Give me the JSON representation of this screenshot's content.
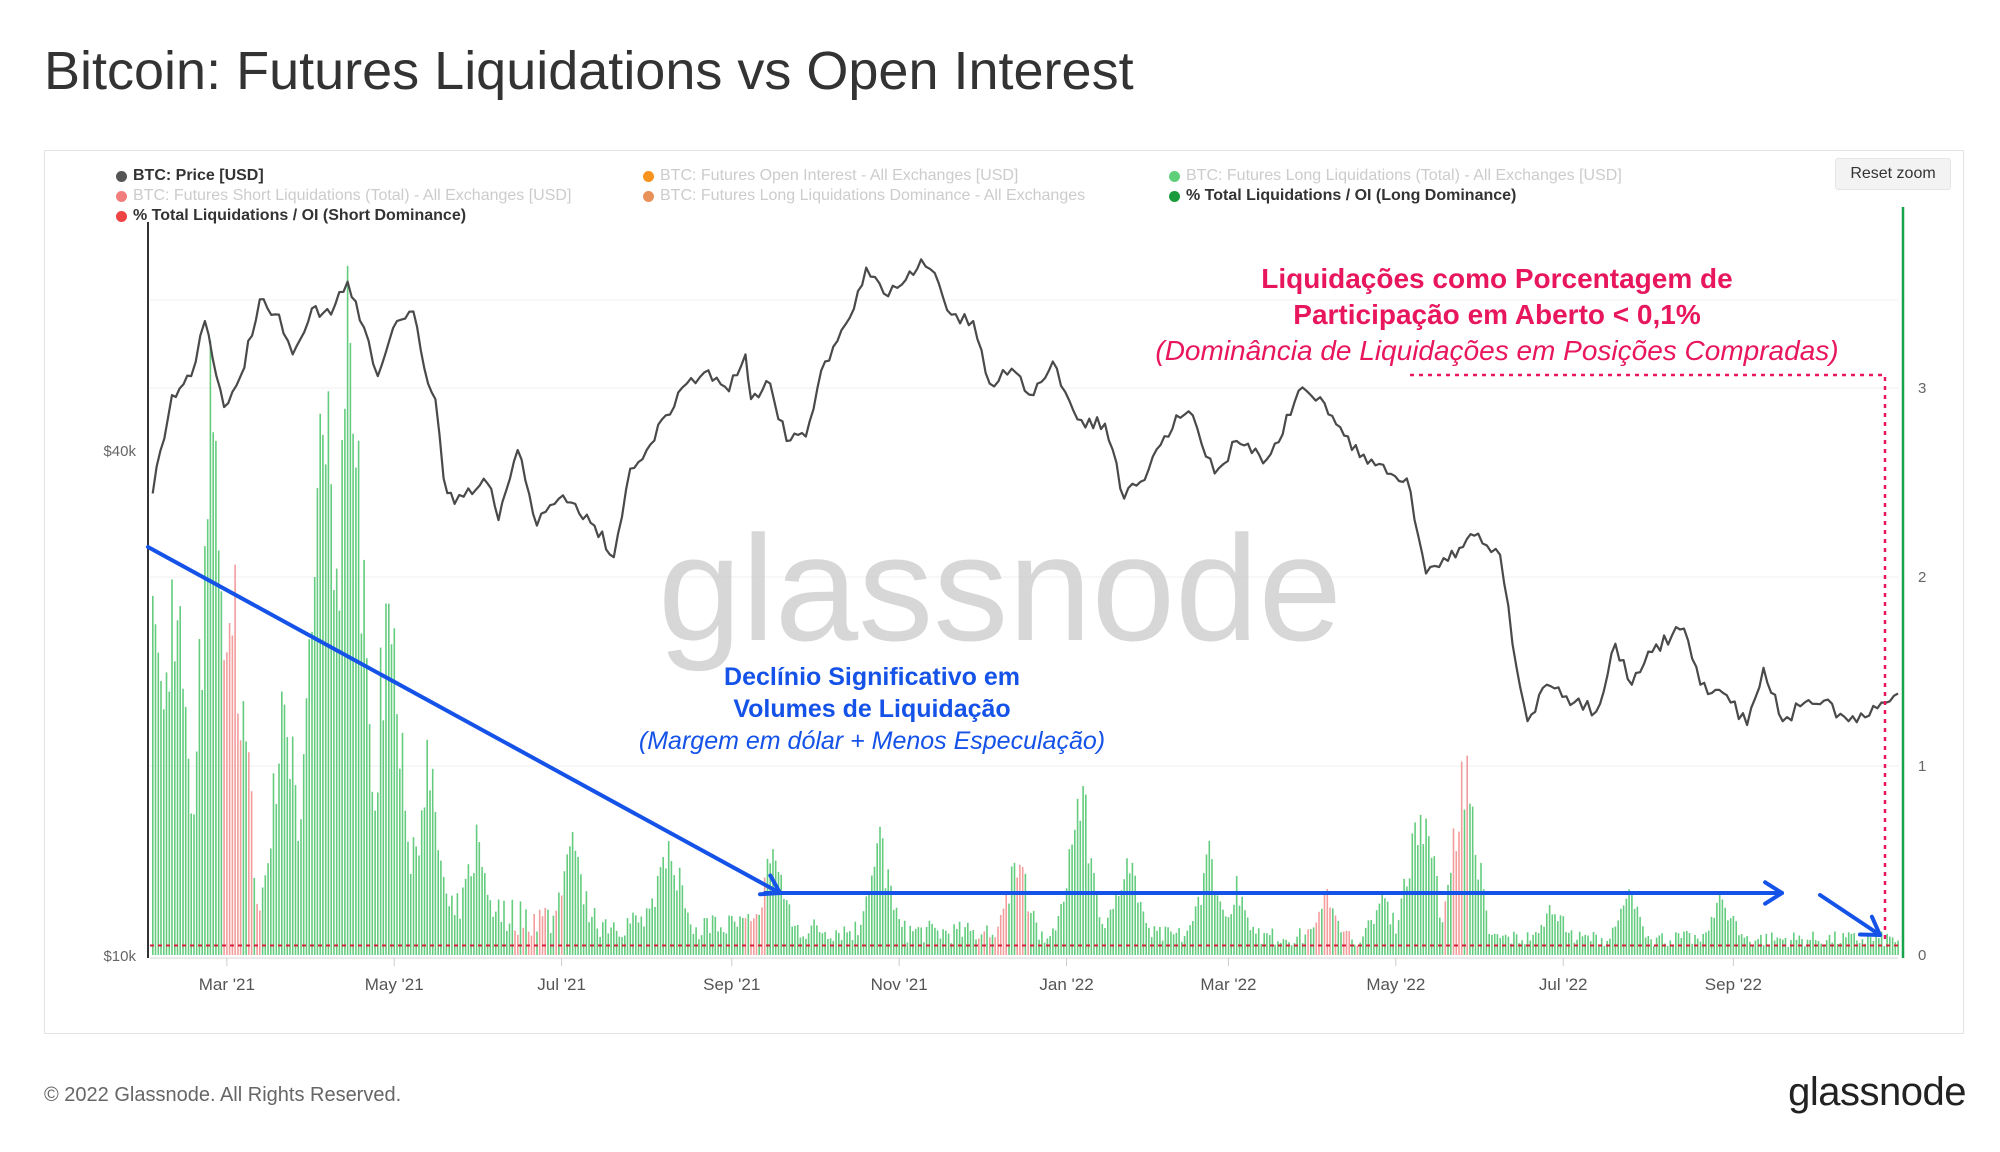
{
  "title": "Bitcoin: Futures Liquidations vs Open Interest",
  "reset_zoom_label": "Reset zoom",
  "footer": {
    "copyright": "© 2022 Glassnode. All Rights Reserved.",
    "logo": "glassnode"
  },
  "watermark": "glassnode",
  "legend": [
    {
      "label": "BTC: Price [USD]",
      "color": "#555555",
      "active": true
    },
    {
      "label": "BTC: Futures Open Interest - All Exchanges [USD]",
      "color": "#f7931a",
      "active": false
    },
    {
      "label": "BTC: Futures Long Liquidations (Total) - All Exchanges [USD]",
      "color": "#5fcf7a",
      "active": false
    },
    {
      "label": "BTC: Futures Short Liquidations (Total) - All Exchanges [USD]",
      "color": "#f27d7d",
      "active": false
    },
    {
      "label": "BTC: Futures Long Liquidations Dominance - All Exchanges",
      "color": "#e8925a",
      "active": false
    },
    {
      "label": "% Total Liquidations / OI (Long Dominance)",
      "color": "#1a9c3c",
      "active": true
    },
    {
      "label": "% Total Liquidations / OI (Short Dominance)",
      "color": "#ee4444",
      "active": true
    }
  ],
  "annotations": {
    "top_line1": "Liquidações como Porcentagem de",
    "top_line2": "Participação em Aberto < 0,1%",
    "top_line3": "(Dominância de Liquidações em Posições Compradas)",
    "mid_line1": "Declínio Significativo em",
    "mid_line2": "Volumes de Liquidação",
    "mid_line3": "(Margem em dólar + Menos Especulação)",
    "top_color": "#e8175d",
    "mid_color": "#1452e8"
  },
  "chart_data": {
    "type": "line",
    "x_range": [
      "2021-02-01",
      "2022-10-31"
    ],
    "x_ticks": [
      "Mar '21",
      "May '21",
      "Jul '21",
      "Sep '21",
      "Nov '21",
      "Jan '22",
      "Mar '22",
      "May '22",
      "Jul '22",
      "Sep '22"
    ],
    "y_left_ticks": [
      "$40k",
      "$10k"
    ],
    "y_right_ticks": [
      "3",
      "2",
      "1",
      "0"
    ],
    "y_right_range": [
      0,
      3.8
    ],
    "threshold": 0.05,
    "price": {
      "name": "BTC: Price [USD]",
      "points": [
        [
          "2021-02-02",
          35500
        ],
        [
          "2021-02-09",
          46500
        ],
        [
          "2021-02-16",
          49000
        ],
        [
          "2021-02-21",
          57000
        ],
        [
          "2021-02-28",
          45000
        ],
        [
          "2021-03-06",
          49000
        ],
        [
          "2021-03-13",
          60500
        ],
        [
          "2021-03-20",
          58000
        ],
        [
          "2021-03-25",
          52000
        ],
        [
          "2021-04-01",
          59000
        ],
        [
          "2021-04-08",
          58000
        ],
        [
          "2021-04-14",
          63500
        ],
        [
          "2021-04-20",
          56000
        ],
        [
          "2021-04-25",
          49000
        ],
        [
          "2021-05-02",
          57000
        ],
        [
          "2021-05-08",
          58500
        ],
        [
          "2021-05-12",
          50000
        ],
        [
          "2021-05-16",
          46000
        ],
        [
          "2021-05-19",
          37000
        ],
        [
          "2021-05-23",
          34500
        ],
        [
          "2021-05-28",
          36000
        ],
        [
          "2021-06-04",
          36500
        ],
        [
          "2021-06-08",
          33000
        ],
        [
          "2021-06-15",
          40000
        ],
        [
          "2021-06-22",
          32500
        ],
        [
          "2021-06-30",
          35000
        ],
        [
          "2021-07-06",
          34500
        ],
        [
          "2021-07-13",
          32500
        ],
        [
          "2021-07-20",
          29800
        ],
        [
          "2021-07-26",
          38000
        ],
        [
          "2021-08-01",
          40000
        ],
        [
          "2021-08-08",
          44000
        ],
        [
          "2021-08-14",
          47500
        ],
        [
          "2021-08-22",
          49500
        ],
        [
          "2021-08-31",
          47000
        ],
        [
          "2021-09-06",
          52000
        ],
        [
          "2021-09-08",
          46000
        ],
        [
          "2021-09-15",
          48000
        ],
        [
          "2021-09-21",
          41000
        ],
        [
          "2021-09-28",
          41500
        ],
        [
          "2021-10-05",
          51000
        ],
        [
          "2021-10-14",
          57500
        ],
        [
          "2021-10-20",
          66000
        ],
        [
          "2021-10-28",
          61000
        ],
        [
          "2021-11-02",
          63000
        ],
        [
          "2021-11-09",
          67500
        ],
        [
          "2021-11-14",
          65000
        ],
        [
          "2021-11-20",
          58000
        ],
        [
          "2021-11-28",
          57000
        ],
        [
          "2021-12-04",
          48000
        ],
        [
          "2021-12-12",
          50000
        ],
        [
          "2021-12-20",
          46500
        ],
        [
          "2021-12-27",
          51000
        ],
        [
          "2022-01-05",
          43500
        ],
        [
          "2022-01-15",
          43000
        ],
        [
          "2022-01-22",
          35000
        ],
        [
          "2022-01-31",
          38000
        ],
        [
          "2022-02-10",
          44000
        ],
        [
          "2022-02-16",
          44000
        ],
        [
          "2022-02-24",
          37500
        ],
        [
          "2022-03-04",
          41000
        ],
        [
          "2022-03-15",
          39000
        ],
        [
          "2022-03-28",
          47500
        ],
        [
          "2022-04-05",
          45500
        ],
        [
          "2022-04-15",
          40000
        ],
        [
          "2022-04-25",
          38500
        ],
        [
          "2022-05-05",
          37000
        ],
        [
          "2022-05-12",
          28500
        ],
        [
          "2022-05-20",
          29500
        ],
        [
          "2022-05-31",
          31800
        ],
        [
          "2022-06-08",
          30000
        ],
        [
          "2022-06-14",
          22000
        ],
        [
          "2022-06-18",
          19000
        ],
        [
          "2022-06-25",
          21000
        ],
        [
          "2022-07-05",
          20000
        ],
        [
          "2022-07-13",
          19500
        ],
        [
          "2022-07-20",
          23500
        ],
        [
          "2022-07-26",
          21000
        ],
        [
          "2022-08-01",
          23000
        ],
        [
          "2022-08-14",
          24500
        ],
        [
          "2022-08-20",
          21000
        ],
        [
          "2022-08-31",
          20000
        ],
        [
          "2022-09-06",
          18800
        ],
        [
          "2022-09-12",
          22000
        ],
        [
          "2022-09-19",
          19000
        ],
        [
          "2022-09-27",
          20000
        ],
        [
          "2022-10-04",
          20100
        ],
        [
          "2022-10-13",
          19000
        ],
        [
          "2022-10-19",
          19200
        ],
        [
          "2022-10-25",
          20000
        ],
        [
          "2022-10-31",
          20500
        ]
      ]
    }
  }
}
